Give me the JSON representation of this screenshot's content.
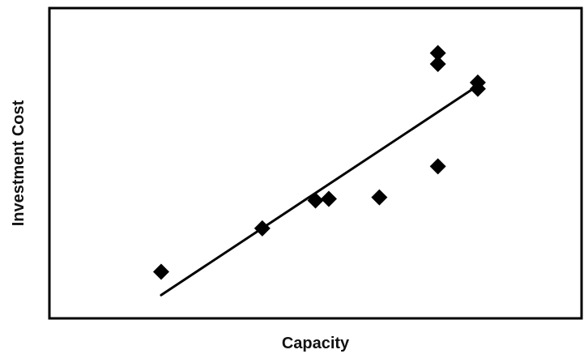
{
  "chart_data": {
    "type": "scatter",
    "title": "",
    "xlabel": "Capacity",
    "ylabel": "Investment Cost",
    "xlim": [
      0,
      10
    ],
    "ylim": [
      0,
      10
    ],
    "grid": false,
    "legend": "none",
    "ticks_visible": false,
    "series": [
      {
        "marker": "diamond",
        "color": "#000000",
        "points": [
          {
            "x": 2.1,
            "y": 1.5
          },
          {
            "x": 4.0,
            "y": 2.9
          },
          {
            "x": 5.0,
            "y": 3.8
          },
          {
            "x": 5.25,
            "y": 3.85
          },
          {
            "x": 6.2,
            "y": 3.9
          },
          {
            "x": 7.3,
            "y": 4.9
          },
          {
            "x": 7.3,
            "y": 8.2
          },
          {
            "x": 7.3,
            "y": 8.55
          },
          {
            "x": 8.05,
            "y": 7.4
          },
          {
            "x": 8.05,
            "y": 7.6
          }
        ]
      }
    ],
    "trendline": {
      "type": "linear",
      "color": "#000000",
      "x": [
        2.1,
        8.05
      ],
      "y": [
        0.75,
        7.5
      ]
    }
  }
}
